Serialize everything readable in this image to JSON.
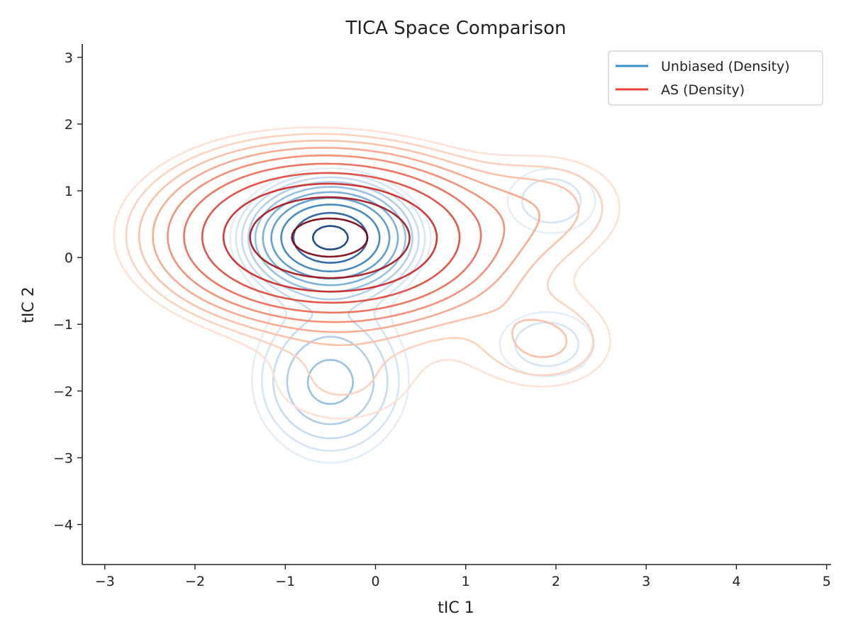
{
  "chart_data": {
    "type": "contour",
    "title": "TICA Space Comparison",
    "xlabel": "tIC 1",
    "ylabel": "tIC 2",
    "xlim": [
      -3.25,
      5.05
    ],
    "ylim": [
      -4.6,
      3.2
    ],
    "xticks": [
      -3,
      -2,
      -1,
      0,
      1,
      2,
      3,
      4,
      5
    ],
    "yticks": [
      -4,
      -3,
      -2,
      -1,
      0,
      1,
      2,
      3
    ],
    "xtick_labels": [
      "−3",
      "−2",
      "−1",
      "0",
      "1",
      "2",
      "3",
      "4",
      "5"
    ],
    "ytick_labels": [
      "−4",
      "−3",
      "−2",
      "−1",
      "0",
      "1",
      "2",
      "3"
    ],
    "grid": false,
    "legend_position": "top-right",
    "series": [
      {
        "name": "Unbiased (Density)",
        "color": "#3a8fc8",
        "colormap": [
          "#e1ecf8",
          "#bcd6ee",
          "#7fb3dc",
          "#3b86c2",
          "#0a3a7a"
        ],
        "levels": 10,
        "components": [
          {
            "cx": -0.5,
            "cy": 0.3,
            "sx": 0.42,
            "sy": 0.38,
            "w": 1.0
          },
          {
            "cx": -0.5,
            "cy": -1.9,
            "sx": 0.45,
            "sy": 0.55,
            "w": 0.13
          },
          {
            "cx": 1.95,
            "cy": 0.85,
            "sx": 0.42,
            "sy": 0.42,
            "w": 0.07
          },
          {
            "cx": 1.9,
            "cy": -1.3,
            "sx": 0.45,
            "sy": 0.42,
            "w": 0.07
          },
          {
            "cx": -0.5,
            "cy": -1.2,
            "sx": 0.6,
            "sy": 1.5,
            "w": 0.05
          }
        ]
      },
      {
        "name": "AS (Density)",
        "color": "#e8433a",
        "colormap": [
          "#fde0d2",
          "#fbb79c",
          "#f2775c",
          "#d62a25",
          "#7a0010"
        ],
        "levels": 10,
        "components": [
          {
            "cx": -0.5,
            "cy": 0.3,
            "sx": 0.9,
            "sy": 0.62,
            "w": 1.0
          },
          {
            "cx": 1.95,
            "cy": 0.8,
            "sx": 0.6,
            "sy": 0.55,
            "w": 0.07
          },
          {
            "cx": 1.9,
            "cy": -1.3,
            "sx": 0.55,
            "sy": 0.5,
            "w": 0.07
          },
          {
            "cx": -0.4,
            "cy": -1.9,
            "sx": 0.75,
            "sy": 0.6,
            "w": 0.05
          },
          {
            "cx": 0.9,
            "cy": -0.4,
            "sx": 1.1,
            "sy": 0.9,
            "w": 0.025
          },
          {
            "cx": -1.4,
            "cy": 0.6,
            "sx": 0.9,
            "sy": 0.9,
            "w": 0.03
          }
        ]
      }
    ]
  }
}
